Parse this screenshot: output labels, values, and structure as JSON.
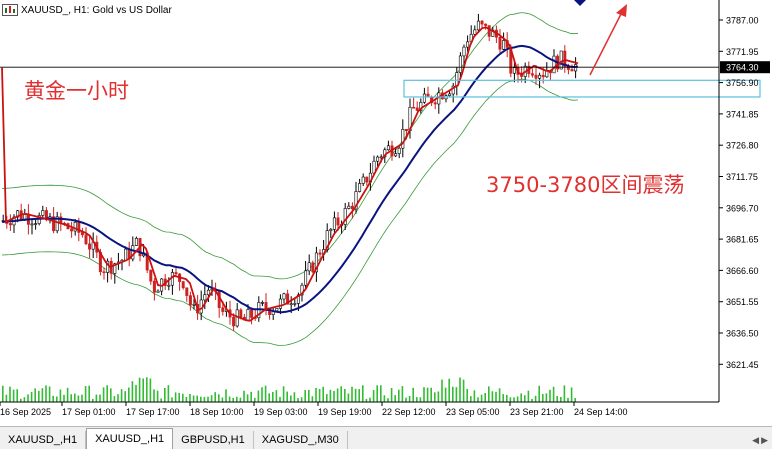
{
  "header": {
    "symbol_text": "XAUUSD_, H1:",
    "description": "Gold vs US Dollar"
  },
  "annotations": {
    "title_cn": "黄金一小时",
    "range_cn": "3750-3780区间震荡"
  },
  "price_axis": {
    "labels": [
      "3787.00",
      "3771.95",
      "3756.90",
      "3741.85",
      "3726.80",
      "3711.75",
      "3696.70",
      "3681.65",
      "3666.60",
      "3651.55",
      "3636.50",
      "3621.45"
    ],
    "current_price": "3764.30",
    "marker_price": "3756.90"
  },
  "time_axis": {
    "labels": [
      "16 Sep 2025",
      "17 Sep 01:00",
      "17 Sep 17:00",
      "18 Sep 10:00",
      "19 Sep 03:00",
      "19 Sep 19:00",
      "22 Sep 12:00",
      "23 Sep 05:00",
      "23 Sep 21:00",
      "24 Sep 14:00"
    ]
  },
  "tabs": [
    {
      "label": "XAUUSD_,H1",
      "active": false
    },
    {
      "label": "XAUUSD_,H1",
      "active": true
    },
    {
      "label": "GBPUSD,H1",
      "active": false
    },
    {
      "label": "XAGUSD_,M30",
      "active": false
    }
  ],
  "colors": {
    "bull": "#000000",
    "bear": "#cc2222",
    "ma_fast": "#cc1111",
    "ma_slow": "#0a1480",
    "bands": "#3a9a3a",
    "volume": "#33bb33",
    "zone": "#5bc0de",
    "arrow": "#e03030"
  },
  "chart_data": {
    "type": "candlestick",
    "price_range": [
      3614,
      3794
    ],
    "key_levels": [
      3756.9,
      3764.3
    ],
    "zone": [
      3750,
      3758
    ]
  }
}
